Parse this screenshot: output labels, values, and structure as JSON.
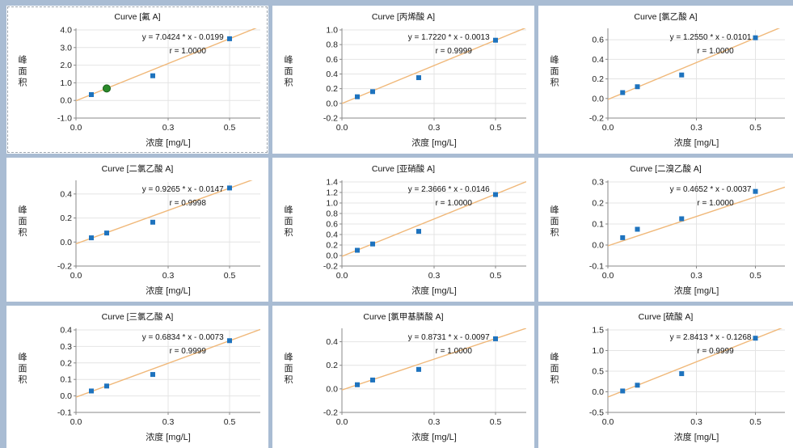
{
  "colors": {
    "line": "#f0b879",
    "point": "#1e73be",
    "highlight": "#2a8a2a",
    "grid": "#e4e4e4",
    "axis": "#888888"
  },
  "x_label": "浓度 [mg/L]",
  "y_label_chars": [
    "峰",
    "面",
    "积"
  ],
  "chart_data": [
    {
      "type": "scatter",
      "title": "Curve [氟 A]",
      "equation": "y = 7.0424 * x - 0.0199",
      "r_text": "r = 1.0000",
      "slope": 7.0424,
      "intercept": -0.0199,
      "xlim": [
        0,
        0.6
      ],
      "x_ticks": [
        "0.0",
        "0.3",
        "0.5"
      ],
      "x_tick_values": [
        0,
        0.3,
        0.5
      ],
      "ylim": [
        -1.0,
        4.0
      ],
      "y_ticks": [
        "4.0",
        "3.0",
        "2.0",
        "1.0",
        "0.0",
        "-1.0"
      ],
      "y_tick_values": [
        4,
        3,
        2,
        1,
        0,
        -1
      ],
      "x": [
        0.05,
        0.1,
        0.25,
        0.5
      ],
      "y": [
        0.33,
        0.68,
        1.4,
        3.5
      ],
      "highlight_index": 1
    },
    {
      "type": "scatter",
      "title": "Curve [丙烯酸 A]",
      "equation": "y = 1.7220 * x - 0.0013",
      "r_text": "r = 0.9999",
      "slope": 1.722,
      "intercept": -0.0013,
      "xlim": [
        0,
        0.6
      ],
      "x_ticks": [
        "0.0",
        "0.3",
        "0.5"
      ],
      "x_tick_values": [
        0,
        0.3,
        0.5
      ],
      "ylim": [
        -0.2,
        1.0
      ],
      "y_ticks": [
        "1.0",
        "0.8",
        "0.6",
        "0.4",
        "0.2",
        "0.0",
        "-0.2"
      ],
      "y_tick_values": [
        1.0,
        0.8,
        0.6,
        0.4,
        0.2,
        0,
        -0.2
      ],
      "x": [
        0.05,
        0.1,
        0.25,
        0.5
      ],
      "y": [
        0.09,
        0.16,
        0.35,
        0.86
      ]
    },
    {
      "type": "scatter",
      "title": "Curve [氯乙酸 A]",
      "equation": "y = 1.2550 * x - 0.0101",
      "r_text": "r = 1.0000",
      "slope": 1.255,
      "intercept": -0.0101,
      "xlim": [
        0,
        0.6
      ],
      "x_ticks": [
        "0.0",
        "0.3",
        "0.5"
      ],
      "x_tick_values": [
        0,
        0.3,
        0.5
      ],
      "ylim": [
        -0.2,
        0.7
      ],
      "y_ticks": [
        "0.6",
        "0.4",
        "0.2",
        "0.0",
        "-0.2"
      ],
      "y_tick_values": [
        0.6,
        0.4,
        0.2,
        0,
        -0.2
      ],
      "x": [
        0.05,
        0.1,
        0.25,
        0.5
      ],
      "y": [
        0.06,
        0.12,
        0.24,
        0.62
      ]
    },
    {
      "type": "scatter",
      "title": "Curve [二氯乙酸 A]",
      "equation": "y = 0.9265 * x - 0.0147",
      "r_text": "r = 0.9998",
      "slope": 0.9265,
      "intercept": -0.0147,
      "xlim": [
        0,
        0.6
      ],
      "x_ticks": [
        "0.0",
        "0.3",
        "0.5"
      ],
      "x_tick_values": [
        0,
        0.3,
        0.5
      ],
      "ylim": [
        -0.2,
        0.5
      ],
      "y_ticks": [
        "0.4",
        "0.2",
        "0.0",
        "-0.2"
      ],
      "y_tick_values": [
        0.4,
        0.2,
        0,
        -0.2
      ],
      "x": [
        0.05,
        0.1,
        0.25,
        0.5
      ],
      "y": [
        0.035,
        0.075,
        0.165,
        0.45
      ]
    },
    {
      "type": "scatter",
      "title": "Curve [亚硝酸 A]",
      "equation": "y = 2.3666 * x - 0.0146",
      "r_text": "r = 1.0000",
      "slope": 2.3666,
      "intercept": -0.0146,
      "xlim": [
        0,
        0.6
      ],
      "x_ticks": [
        "0.0",
        "0.3",
        "0.5"
      ],
      "x_tick_values": [
        0,
        0.3,
        0.5
      ],
      "ylim": [
        -0.2,
        1.4
      ],
      "y_ticks": [
        "1.4",
        "1.2",
        "1.0",
        "0.8",
        "0.6",
        "0.4",
        "0.2",
        "0.0",
        "-0.2"
      ],
      "y_tick_values": [
        1.4,
        1.2,
        1.0,
        0.8,
        0.6,
        0.4,
        0.2,
        0,
        -0.2
      ],
      "x": [
        0.05,
        0.1,
        0.25,
        0.5
      ],
      "y": [
        0.1,
        0.22,
        0.46,
        1.16
      ]
    },
    {
      "type": "scatter",
      "title": "Curve [二溴乙酸 A]",
      "equation": "y = 0.4652 * x - 0.0037",
      "r_text": "r = 1.0000",
      "slope": 0.4652,
      "intercept": -0.0037,
      "xlim": [
        0,
        0.6
      ],
      "x_ticks": [
        "0.0",
        "0.3",
        "0.5"
      ],
      "x_tick_values": [
        0,
        0.3,
        0.5
      ],
      "ylim": [
        -0.1,
        0.3
      ],
      "y_ticks": [
        "0.3",
        "0.2",
        "0.1",
        "0.0",
        "-0.1"
      ],
      "y_tick_values": [
        0.3,
        0.2,
        0.1,
        0,
        -0.1
      ],
      "x": [
        0.05,
        0.1,
        0.25,
        0.5
      ],
      "y": [
        0.035,
        0.075,
        0.125,
        0.255
      ]
    },
    {
      "type": "scatter",
      "title": "Curve [三氯乙酸 A]",
      "equation": "y = 0.6834 * x - 0.0073",
      "r_text": "r = 0.9999",
      "slope": 0.6834,
      "intercept": -0.0073,
      "xlim": [
        0,
        0.6
      ],
      "x_ticks": [
        "0.0",
        "0.3",
        "0.5"
      ],
      "x_tick_values": [
        0,
        0.3,
        0.5
      ],
      "ylim": [
        -0.1,
        0.4
      ],
      "y_ticks": [
        "0.4",
        "0.3",
        "0.2",
        "0.1",
        "0.0",
        "-0.1"
      ],
      "y_tick_values": [
        0.4,
        0.3,
        0.2,
        0.1,
        0,
        -0.1
      ],
      "x": [
        0.05,
        0.1,
        0.25,
        0.5
      ],
      "y": [
        0.03,
        0.06,
        0.13,
        0.335
      ]
    },
    {
      "type": "scatter",
      "title": "Curve [氯甲基膦酸 A]",
      "equation": "y = 0.8731 * x - 0.0097",
      "r_text": "r = 1.0000",
      "slope": 0.8731,
      "intercept": -0.0097,
      "xlim": [
        0,
        0.6
      ],
      "x_ticks": [
        "0.0",
        "0.3",
        "0.5"
      ],
      "x_tick_values": [
        0,
        0.3,
        0.5
      ],
      "ylim": [
        -0.2,
        0.5
      ],
      "y_ticks": [
        "0.4",
        "0.2",
        "0.0",
        "-0.2"
      ],
      "y_tick_values": [
        0.4,
        0.2,
        0,
        -0.2
      ],
      "x": [
        0.05,
        0.1,
        0.25,
        0.5
      ],
      "y": [
        0.035,
        0.075,
        0.165,
        0.425
      ]
    },
    {
      "type": "scatter",
      "title": "Curve [硫酸 A]",
      "equation": "y = 2.8413 * x - 0.1268",
      "r_text": "r = 0.9999",
      "slope": 2.8413,
      "intercept": -0.1268,
      "xlim": [
        0,
        0.6
      ],
      "x_ticks": [
        "0.0",
        "0.3",
        "0.5"
      ],
      "x_tick_values": [
        0,
        0.3,
        0.5
      ],
      "ylim": [
        -0.5,
        1.5
      ],
      "y_ticks": [
        "1.5",
        "1.0",
        "0.5",
        "0.0",
        "-0.5"
      ],
      "y_tick_values": [
        1.5,
        1.0,
        0.5,
        0,
        -0.5
      ],
      "x": [
        0.05,
        0.1,
        0.25,
        0.5
      ],
      "y": [
        0.02,
        0.16,
        0.44,
        1.3
      ]
    }
  ]
}
